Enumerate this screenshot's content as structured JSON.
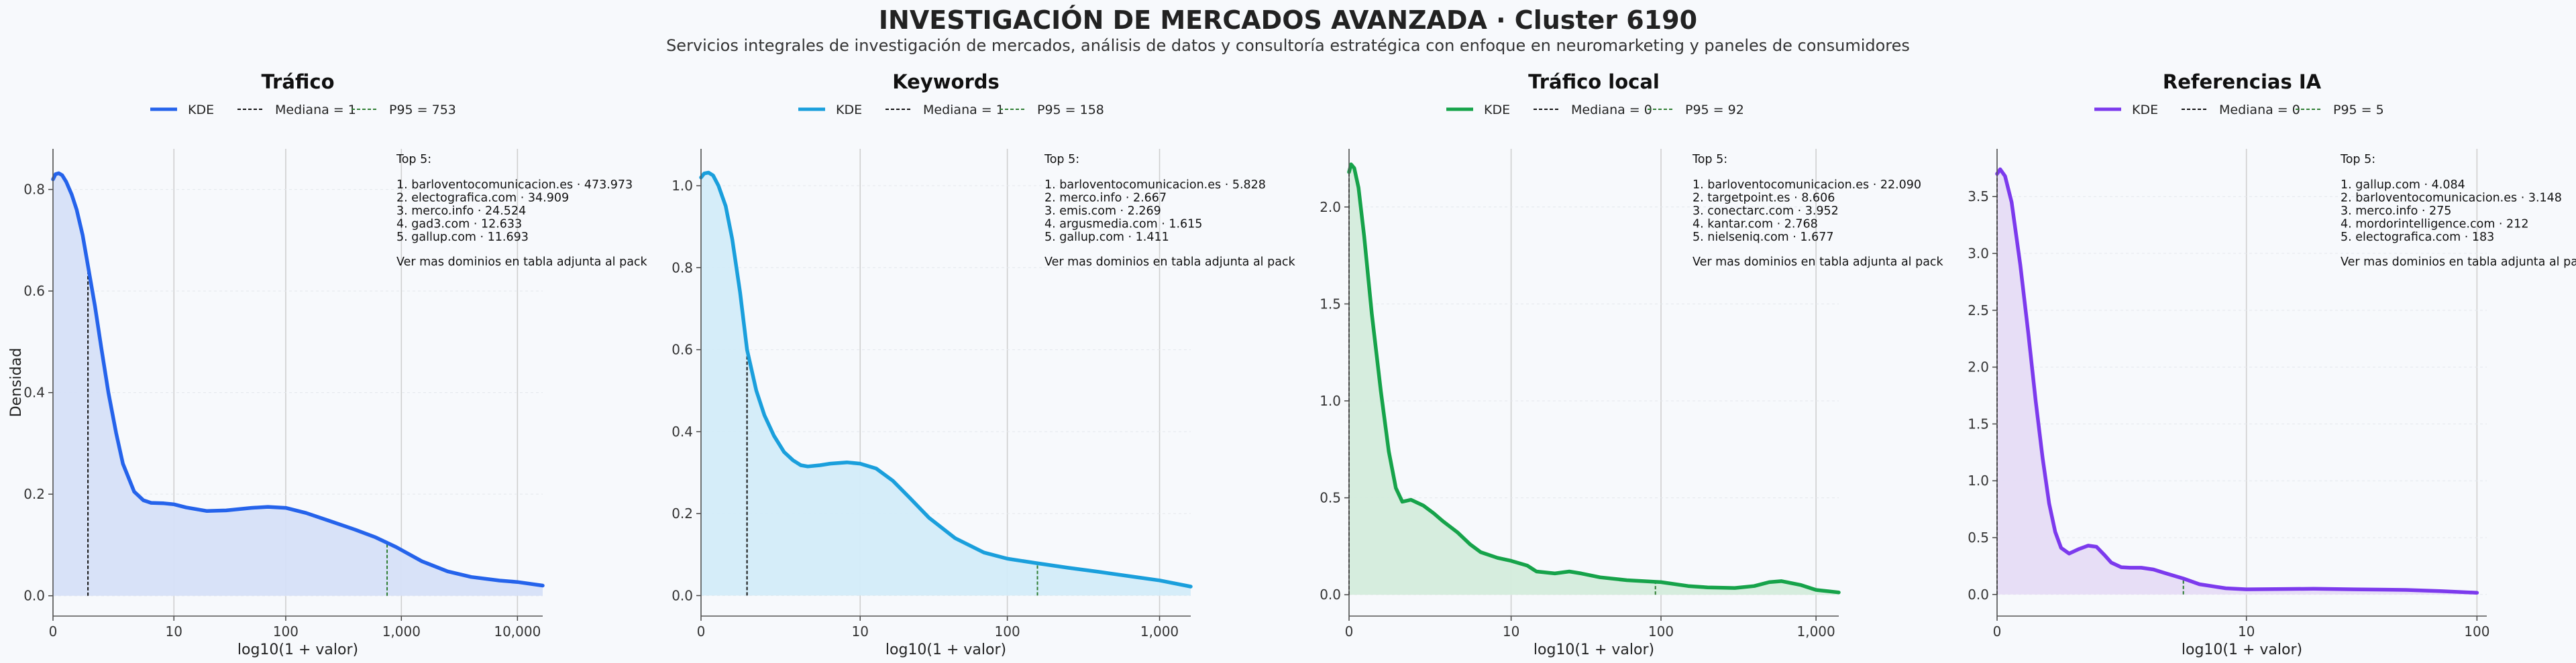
{
  "header": {
    "title": "INVESTIGACIÓN DE MERCADOS AVANZADA · Cluster 6190",
    "subtitle": "Servicios integrales de investigación de mercados, análisis de datos y consultoría estratégica con enfoque en neuromarketing y paneles de consumidores"
  },
  "colors": {
    "background": "#f7f9fc",
    "panel_bg": "#f7f9fc",
    "grid": "#cfcfcf",
    "median_line": "#111111",
    "p95_line": "#2e7d32"
  },
  "chart_data": [
    {
      "type": "area",
      "title": "Tráfico",
      "xlabel": "log10(1 + valor)",
      "ylabel": "Densidad",
      "x_scale": "log10(1+x)",
      "color": "#2563eb",
      "fill": "#d6e0f8",
      "xticks": [
        0,
        10,
        100,
        1000,
        10000
      ],
      "xtick_labels": [
        "0",
        "10",
        "100",
        "1,000",
        "10,000"
      ],
      "xlim": [
        0,
        16500
      ],
      "yticks": [
        0,
        0.2,
        0.4,
        0.6,
        0.8
      ],
      "ytick_labels": [
        "0.0",
        "0.2",
        "0.4",
        "0.6",
        "0.8"
      ],
      "ylim": [
        -0.04,
        0.88
      ],
      "legend": [
        "KDE",
        "Mediana = 1",
        "P95 = 753"
      ],
      "median": 1,
      "p95": 753,
      "kde": {
        "x": [
          0,
          0.05,
          0.12,
          0.2,
          0.3,
          0.45,
          0.6,
          0.8,
          1,
          1.3,
          1.6,
          2,
          2.5,
          3,
          4,
          5,
          6,
          8,
          10,
          13,
          20,
          30,
          50,
          70,
          100,
          150,
          250,
          400,
          600,
          900,
          1500,
          2500,
          4000,
          7000,
          10000,
          16500
        ],
        "y": [
          0.82,
          0.83,
          0.832,
          0.828,
          0.815,
          0.79,
          0.76,
          0.71,
          0.65,
          0.57,
          0.49,
          0.4,
          0.32,
          0.26,
          0.205,
          0.188,
          0.183,
          0.182,
          0.18,
          0.174,
          0.167,
          0.168,
          0.173,
          0.175,
          0.173,
          0.163,
          0.146,
          0.13,
          0.115,
          0.096,
          0.068,
          0.048,
          0.037,
          0.03,
          0.027,
          0.02
        ]
      },
      "top5_title": "Top 5:",
      "top5": [
        "1. barloventocomunicacion.es · 473.973",
        "2. electografica.com · 34.909",
        "3. merco.info · 24.524",
        "4. gad3.com · 12.633",
        "5. gallup.com · 11.693"
      ],
      "note": "Ver mas dominios en tabla adjunta al pack"
    },
    {
      "type": "area",
      "title": "Keywords",
      "xlabel": "log10(1 + valor)",
      "ylabel": "",
      "x_scale": "log10(1+x)",
      "color": "#1a9fdc",
      "fill": "#d3ecf9",
      "xticks": [
        0,
        10,
        100,
        1000
      ],
      "xtick_labels": [
        "0",
        "10",
        "100",
        "1,000"
      ],
      "xlim": [
        0,
        1600
      ],
      "yticks": [
        0,
        0.2,
        0.4,
        0.6,
        0.8,
        1.0
      ],
      "ytick_labels": [
        "0.0",
        "0.2",
        "0.4",
        "0.6",
        "0.8",
        "1.0"
      ],
      "ylim": [
        -0.05,
        1.09
      ],
      "legend": [
        "KDE",
        "Mediana = 1",
        "P95 = 158"
      ],
      "median": 1,
      "p95": 158,
      "kde": {
        "x": [
          0,
          0.05,
          0.12,
          0.2,
          0.3,
          0.45,
          0.6,
          0.8,
          1,
          1.3,
          1.6,
          2,
          2.5,
          3,
          3.5,
          4,
          5,
          6,
          8,
          10,
          13,
          17,
          22,
          30,
          45,
          70,
          100,
          150,
          250,
          400,
          700,
          1000,
          1600
        ],
        "y": [
          1.02,
          1.03,
          1.032,
          1.025,
          1.0,
          0.95,
          0.87,
          0.74,
          0.6,
          0.5,
          0.44,
          0.39,
          0.35,
          0.33,
          0.318,
          0.315,
          0.318,
          0.322,
          0.325,
          0.322,
          0.31,
          0.28,
          0.24,
          0.19,
          0.14,
          0.105,
          0.09,
          0.08,
          0.068,
          0.058,
          0.045,
          0.037,
          0.022
        ]
      },
      "top5_title": "Top 5:",
      "top5": [
        "1. barloventocomunicacion.es · 5.828",
        "2. merco.info · 2.667",
        "3. emis.com · 2.269",
        "4. argusmedia.com · 1.615",
        "5. gallup.com · 1.411"
      ],
      "note": "Ver mas dominios en tabla adjunta al pack"
    },
    {
      "type": "area",
      "title": "Tráfico local",
      "xlabel": "log10(1 + valor)",
      "ylabel": "",
      "x_scale": "log10(1+x)",
      "color": "#16a34a",
      "fill": "#d4ecdc",
      "xticks": [
        0,
        10,
        100,
        1000
      ],
      "xtick_labels": [
        "0",
        "10",
        "100",
        "1,000"
      ],
      "xlim": [
        0,
        1400
      ],
      "yticks": [
        0,
        0.5,
        1.0,
        1.5,
        2.0
      ],
      "ytick_labels": [
        "0.0",
        "0.5",
        "1.0",
        "1.5",
        "2.0"
      ],
      "ylim": [
        -0.11,
        2.3
      ],
      "legend": [
        "KDE",
        "Mediana = 0",
        "P95 = 92"
      ],
      "median": 0,
      "p95": 92,
      "kde": {
        "x": [
          0,
          0.03,
          0.08,
          0.15,
          0.25,
          0.4,
          0.6,
          0.8,
          1.0,
          1.2,
          1.5,
          2,
          2.5,
          3,
          4,
          5,
          6,
          8,
          10,
          13,
          15,
          20,
          25,
          30,
          40,
          60,
          100,
          150,
          200,
          300,
          400,
          500,
          600,
          800,
          1000,
          1400
        ],
        "y": [
          2.18,
          2.22,
          2.2,
          2.1,
          1.85,
          1.45,
          1.05,
          0.74,
          0.55,
          0.48,
          0.49,
          0.46,
          0.42,
          0.38,
          0.32,
          0.26,
          0.22,
          0.19,
          0.175,
          0.15,
          0.12,
          0.11,
          0.12,
          0.11,
          0.09,
          0.075,
          0.065,
          0.045,
          0.038,
          0.035,
          0.045,
          0.065,
          0.07,
          0.05,
          0.025,
          0.012
        ]
      },
      "top5_title": "Top 5:",
      "top5": [
        "1. barloventocomunicacion.es · 22.090",
        "2. targetpoint.es · 8.606",
        "3. conectarc.com · 3.952",
        "4. kantar.com · 2.768",
        "5. nielseniq.com · 1.677"
      ],
      "note": "Ver mas dominios en tabla adjunta al pack"
    },
    {
      "type": "area",
      "title": "Referencias IA",
      "xlabel": "log10(1 + valor)",
      "ylabel": "",
      "x_scale": "log10(1+x)",
      "color": "#7c3aed",
      "fill": "#e6dcf6",
      "xticks": [
        0,
        10,
        100
      ],
      "xtick_labels": [
        "0",
        "10",
        "100"
      ],
      "xlim": [
        0,
        110
      ],
      "yticks": [
        0,
        0.5,
        1.0,
        1.5,
        2.0,
        2.5,
        3.0,
        3.5
      ],
      "ytick_labels": [
        "0.0",
        "0.5",
        "1.0",
        "1.5",
        "2.0",
        "2.5",
        "3.0",
        "3.5"
      ],
      "ylim": [
        -0.19,
        3.92
      ],
      "legend": [
        "KDE",
        "Mediana = 0",
        "P95 = 5"
      ],
      "median": 0,
      "p95": 5,
      "kde": {
        "x": [
          0,
          0.03,
          0.08,
          0.15,
          0.25,
          0.35,
          0.45,
          0.55,
          0.65,
          0.75,
          0.85,
          1.0,
          1.2,
          1.4,
          1.6,
          1.8,
          2.0,
          2.3,
          2.6,
          3.0,
          3.5,
          4.0,
          5.0,
          6.0,
          8.0,
          10,
          15,
          20,
          30,
          50,
          70,
          100
        ],
        "y": [
          3.7,
          3.74,
          3.68,
          3.45,
          2.9,
          2.3,
          1.7,
          1.2,
          0.8,
          0.55,
          0.41,
          0.36,
          0.4,
          0.43,
          0.42,
          0.35,
          0.28,
          0.24,
          0.235,
          0.235,
          0.22,
          0.19,
          0.14,
          0.09,
          0.055,
          0.045,
          0.048,
          0.05,
          0.045,
          0.04,
          0.03,
          0.015
        ]
      },
      "top5_title": "Top 5:",
      "top5": [
        "1. gallup.com · 4.084",
        "2. barloventocomunicacion.es · 3.148",
        "3. merco.info · 275",
        "4. mordorintelligence.com · 212",
        "5. electografica.com · 183"
      ],
      "note": "Ver mas dominios en tabla adjunta al pack"
    }
  ]
}
